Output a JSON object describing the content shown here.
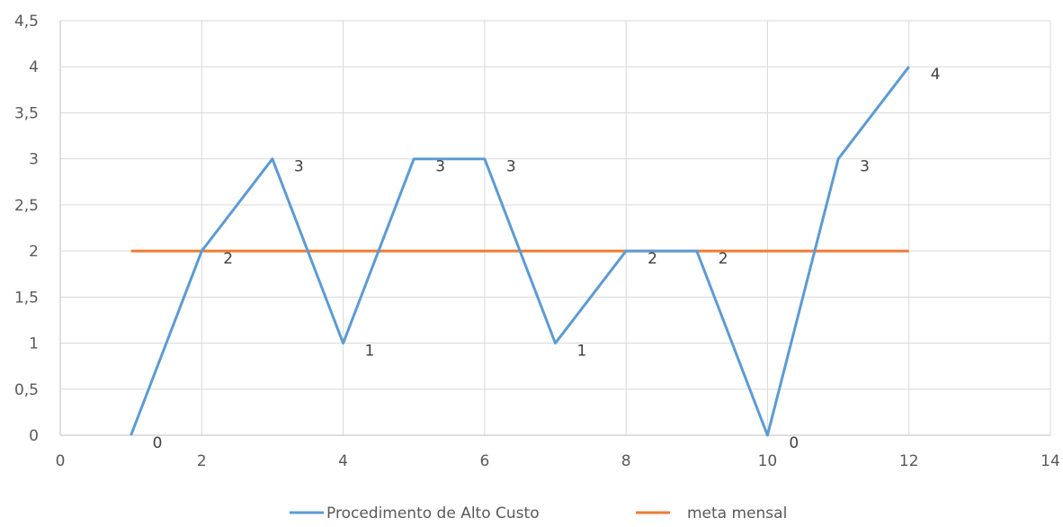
{
  "chart_data": {
    "type": "line",
    "xlim": [
      0,
      14
    ],
    "ylim": [
      0,
      4.5
    ],
    "x_ticks": [
      "0",
      "2",
      "4",
      "6",
      "8",
      "10",
      "12",
      "14"
    ],
    "y_ticks": [
      "0",
      "0,5",
      "1",
      "1,5",
      "2",
      "2,5",
      "3",
      "3,5",
      "4",
      "4,5"
    ],
    "grid": true,
    "legend_position": "bottom",
    "series": [
      {
        "name": "Procedimento de Alto Custo",
        "color": "#5b9bd5",
        "x": [
          1,
          2,
          3,
          4,
          5,
          6,
          7,
          8,
          9,
          10,
          11,
          12
        ],
        "y": [
          0,
          2,
          3,
          1,
          3,
          3,
          1,
          2,
          2,
          0,
          3,
          4
        ],
        "data_labels": [
          "0",
          "2",
          "3",
          "1",
          "3",
          "3",
          "1",
          "2",
          "2",
          "0",
          "3",
          "4"
        ]
      },
      {
        "name": "meta mensal",
        "color": "#ed7d31",
        "x": [
          1,
          2,
          3,
          4,
          5,
          6,
          7,
          8,
          9,
          10,
          11,
          12
        ],
        "y": [
          2,
          2,
          2,
          2,
          2,
          2,
          2,
          2,
          2,
          2,
          2,
          2
        ]
      }
    ]
  }
}
